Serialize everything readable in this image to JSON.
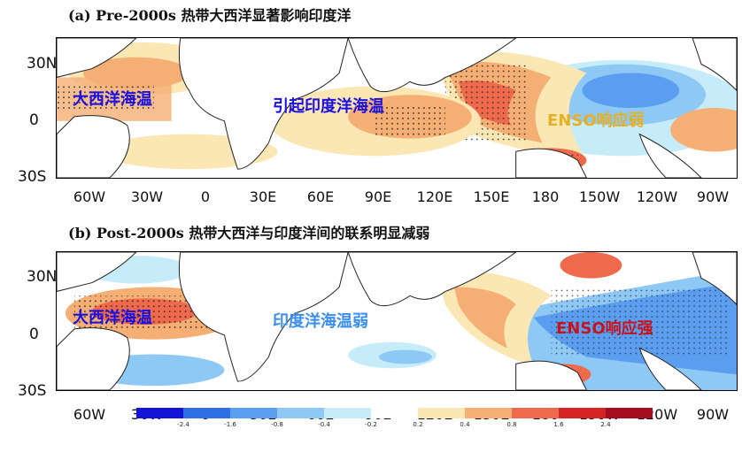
{
  "titles": {
    "a": "(a) Pre-2000s 热带大西洋显著影响印度洋",
    "b": "(b) Post-2000s 热带大西洋与印度洋间的联系明显减弱"
  },
  "axes": {
    "lat_ticks": [
      "30N",
      "0",
      "30S"
    ],
    "lon_ticks": [
      "60W",
      "30W",
      "0",
      "30E",
      "60E",
      "90E",
      "120E",
      "150E",
      "180",
      "150W",
      "120W",
      "90W"
    ]
  },
  "annotations": {
    "a": {
      "atlantic": "大西洋海温",
      "indian": "引起印度洋海温",
      "enso": "ENSO响应弱"
    },
    "b": {
      "atlantic": "大西洋海温",
      "indian": "印度洋海温弱",
      "enso": "ENSO响应强"
    }
  },
  "colors": {
    "atlantic_label": "#1a10e0",
    "indian_label_a": "#1a10e0",
    "indian_label_b": "#3a8ef0",
    "enso_label_a": "#e8b020",
    "enso_label_b": "#c81418"
  },
  "colorbar": {
    "colors": [
      "#1414d8",
      "#2f6fe6",
      "#5b9ef0",
      "#8ec8f5",
      "#c6ecf9",
      "#ffffff",
      "#fbe7b4",
      "#f5ae74",
      "#ef6a4c",
      "#d42424",
      "#a50e1e"
    ],
    "labels": [
      "-2.4",
      "-1.6",
      "-0.8",
      "-0.4",
      "-0.2",
      "0.2",
      "0.4",
      "0.8",
      "1.6",
      "2.4"
    ]
  }
}
